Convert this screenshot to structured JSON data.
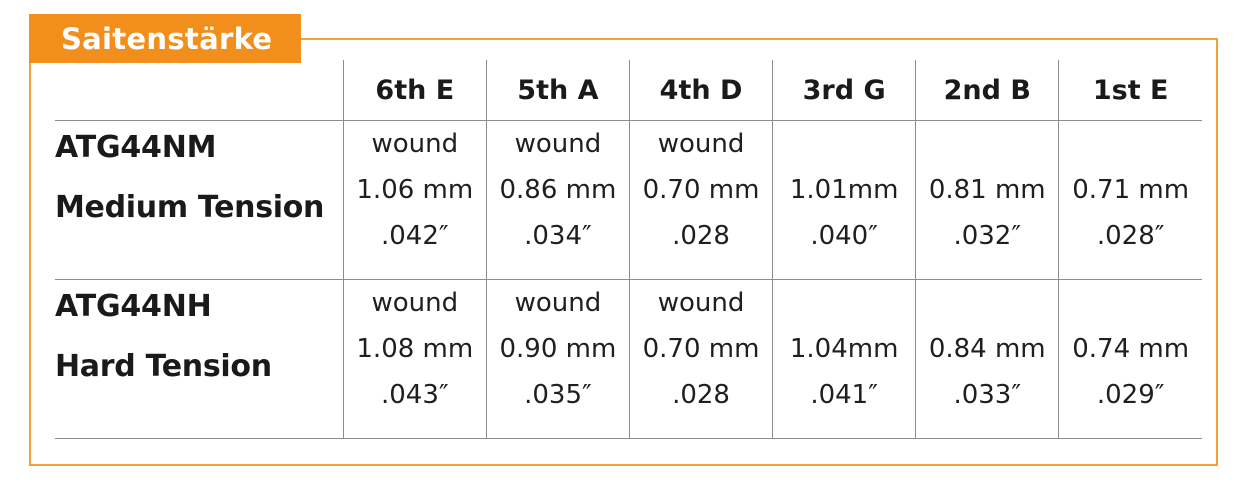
{
  "title": "Saitenstärke",
  "columns": [
    "6th E",
    "5th A",
    "4th D",
    "3rd G",
    "2nd B",
    "1st E"
  ],
  "rows": [
    {
      "model": "ATG44NM",
      "tension": "Medium Tension",
      "cells": [
        {
          "type": "wound",
          "mm": "1.06 mm",
          "inch": ".042″"
        },
        {
          "type": "wound",
          "mm": "0.86 mm",
          "inch": ".034″"
        },
        {
          "type": "wound",
          "mm": "0.70 mm",
          "inch": ".028"
        },
        {
          "type": "",
          "mm": "1.01mm",
          "inch": ".040″"
        },
        {
          "type": "",
          "mm": "0.81 mm",
          "inch": ".032″"
        },
        {
          "type": "",
          "mm": "0.71 mm",
          "inch": ".028″"
        }
      ]
    },
    {
      "model": "ATG44NH",
      "tension": "Hard Tension",
      "cells": [
        {
          "type": "wound",
          "mm": "1.08 mm",
          "inch": ".043″"
        },
        {
          "type": "wound",
          "mm": "0.90 mm",
          "inch": ".035″"
        },
        {
          "type": "wound",
          "mm": "0.70 mm",
          "inch": ".028"
        },
        {
          "type": "",
          "mm": "1.04mm",
          "inch": ".041″"
        },
        {
          "type": "",
          "mm": "0.84 mm",
          "inch": ".033″"
        },
        {
          "type": "",
          "mm": "0.74 mm",
          "inch": ".029″"
        }
      ]
    }
  ],
  "colors": {
    "accent": "#f28e1c",
    "frame": "#f0a13a",
    "grid": "#8d8d8d"
  }
}
